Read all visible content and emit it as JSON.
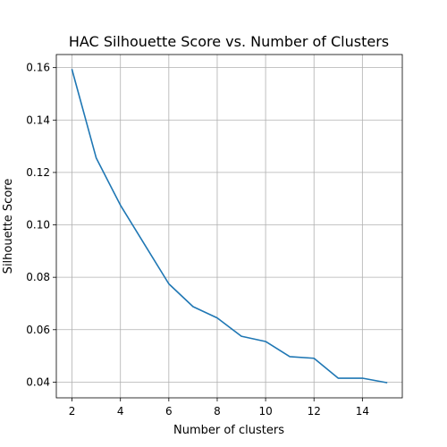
{
  "chart_data": {
    "type": "line",
    "title": "HAC Silhouette Score vs. Number of Clusters",
    "xlabel": "Number of clusters",
    "ylabel": "Silhouette Score",
    "x": [
      2,
      3,
      4,
      5,
      6,
      7,
      8,
      9,
      10,
      11,
      12,
      13,
      14,
      15
    ],
    "series": [
      {
        "values": [
          0.1592,
          0.1255,
          0.1075,
          0.0925,
          0.0775,
          0.0688,
          0.0645,
          0.0575,
          0.0555,
          0.0497,
          0.0491,
          0.0415,
          0.0415,
          0.0398
        ],
        "color": "#1f77b4"
      }
    ],
    "xlim": [
      1.35,
      15.65
    ],
    "ylim": [
      0.034,
      0.165
    ],
    "xticks": [
      2,
      4,
      6,
      8,
      10,
      12,
      14
    ],
    "yticks": [
      0.04,
      0.06,
      0.08,
      0.1,
      0.12,
      0.14,
      0.16
    ],
    "xtick_labels": [
      "2",
      "4",
      "6",
      "8",
      "10",
      "12",
      "14"
    ],
    "ytick_labels": [
      "0.04",
      "0.06",
      "0.08",
      "0.10",
      "0.12",
      "0.14",
      "0.16"
    ],
    "grid": true,
    "legend": "none"
  }
}
